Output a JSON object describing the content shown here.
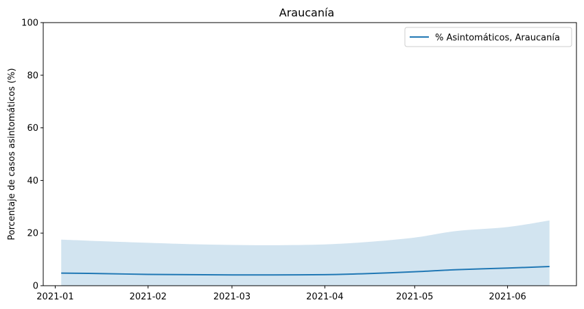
{
  "chart_data": {
    "type": "line",
    "title": "Araucanía",
    "xlabel": "",
    "ylabel": "Porcentaje de casos asintomáticos (%)",
    "ylim": [
      0,
      100
    ],
    "xlim": [
      "2020-12-28",
      "2021-06-24"
    ],
    "xticks": [
      "2021-01",
      "2021-02",
      "2021-03",
      "2021-04",
      "2021-05",
      "2021-06"
    ],
    "yticks": [
      0,
      20,
      40,
      60,
      80,
      100
    ],
    "grid": false,
    "legend": {
      "position": "top-right",
      "entries": [
        "% Asintomáticos, Araucanía"
      ]
    },
    "colors": {
      "line": "#1f77b4",
      "band": "#1f77b4",
      "band_opacity": 0.2
    },
    "x": [
      "2021-01-03",
      "2021-01-17",
      "2021-02-01",
      "2021-02-15",
      "2021-03-01",
      "2021-03-15",
      "2021-04-01",
      "2021-04-15",
      "2021-05-01",
      "2021-05-15",
      "2021-06-01",
      "2021-06-15"
    ],
    "series": [
      {
        "name": "% Asintomáticos, Araucanía",
        "values": [
          4.8,
          4.6,
          4.3,
          4.2,
          4.1,
          4.1,
          4.2,
          4.6,
          5.3,
          6.1,
          6.7,
          7.3
        ],
        "lower": [
          0,
          0,
          0,
          0,
          0,
          0,
          0,
          0,
          0,
          0,
          0,
          0
        ],
        "upper": [
          17.5,
          16.9,
          16.3,
          15.8,
          15.5,
          15.4,
          15.7,
          16.6,
          18.3,
          20.8,
          22.3,
          24.8
        ]
      }
    ]
  }
}
